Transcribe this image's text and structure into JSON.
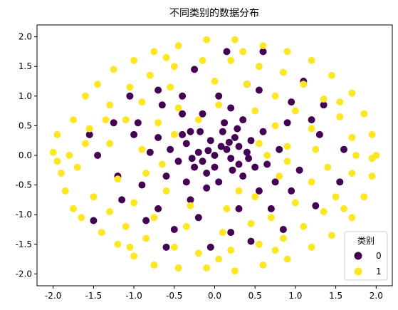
{
  "chart_data": {
    "type": "scatter",
    "title": "不同类别的数据分布",
    "xlabel": "",
    "ylabel": "",
    "xlim": [
      -2.2,
      2.2
    ],
    "ylim": [
      -2.2,
      2.2
    ],
    "x_ticks": [
      "-2.0",
      "-1.5",
      "-1.0",
      "-0.5",
      "0.0",
      "0.5",
      "1.0",
      "1.5",
      "2.0"
    ],
    "y_ticks": [
      "2.0",
      "1.5",
      "1.0",
      "0.5",
      "0.0",
      "-0.5",
      "-1.0",
      "-1.5",
      "-2.0"
    ],
    "grid": false,
    "legend": {
      "title": "类别",
      "placement": "lower right",
      "entries": [
        {
          "label": "0",
          "color": "#440154"
        },
        {
          "label": "1",
          "color": "#fde725"
        }
      ]
    },
    "series": [
      {
        "name": "0",
        "color": "#440154",
        "points": [
          [
            0.0,
            0.0
          ],
          [
            0.15,
            0.1
          ],
          [
            -0.2,
            0.05
          ],
          [
            0.3,
            -0.15
          ],
          [
            -0.1,
            -0.3
          ],
          [
            0.25,
            0.3
          ],
          [
            -0.35,
            0.2
          ],
          [
            0.05,
            -0.45
          ],
          [
            0.4,
            0.05
          ],
          [
            -0.25,
            -0.2
          ],
          [
            0.1,
            0.4
          ],
          [
            -0.45,
            -0.1
          ],
          [
            0.35,
            -0.35
          ],
          [
            0.2,
            -0.05
          ],
          [
            -0.05,
            0.25
          ],
          [
            0.45,
            0.25
          ],
          [
            -0.3,
            0.4
          ],
          [
            0.0,
            -0.2
          ],
          [
            0.3,
            0.15
          ],
          [
            -0.15,
            -0.1
          ],
          [
            0.5,
            -0.2
          ],
          [
            -0.55,
            0.1
          ],
          [
            0.12,
            0.55
          ],
          [
            -0.1,
            -0.55
          ],
          [
            0.6,
            0.4
          ],
          [
            -0.6,
            -0.35
          ],
          [
            0.2,
            0.8
          ],
          [
            -0.4,
            0.7
          ],
          [
            0.55,
            -0.6
          ],
          [
            -0.3,
            -0.75
          ],
          [
            0.8,
            0.1
          ],
          [
            -0.8,
            0.05
          ],
          [
            0.9,
            0.55
          ],
          [
            -0.9,
            -0.5
          ],
          [
            0.3,
            -0.9
          ],
          [
            -0.65,
            0.85
          ],
          [
            0.7,
            -0.9
          ],
          [
            -1.0,
            0.35
          ],
          [
            1.05,
            -0.25
          ],
          [
            0.05,
            1.0
          ],
          [
            -0.2,
            -1.05
          ],
          [
            0.95,
            0.9
          ],
          [
            -1.15,
            -0.75
          ],
          [
            0.4,
            1.2
          ],
          [
            -0.5,
            -1.25
          ],
          [
            1.3,
            0.35
          ],
          [
            -1.25,
            0.55
          ],
          [
            -0.7,
            1.1
          ],
          [
            0.85,
            -1.25
          ],
          [
            0.15,
            1.75
          ],
          [
            0.6,
            1.75
          ],
          [
            -0.05,
            -1.55
          ],
          [
            -0.6,
            -1.55
          ],
          [
            1.25,
            -0.85
          ],
          [
            -1.45,
            0.0
          ],
          [
            1.35,
            0.85
          ],
          [
            -1.05,
            1.0
          ],
          [
            0.45,
            -1.45
          ],
          [
            -0.25,
            1.45
          ],
          [
            0.35,
            0.6
          ],
          [
            -0.7,
            0.3
          ],
          [
            0.65,
            -0.15
          ],
          [
            -0.15,
            0.7
          ],
          [
            0.75,
            -0.45
          ],
          [
            -0.35,
            -0.45
          ],
          [
            0.08,
            0.15
          ],
          [
            -0.08,
            0.08
          ],
          [
            0.22,
            -0.25
          ],
          [
            -0.28,
            -0.05
          ],
          [
            0.18,
            0.22
          ],
          [
            -0.4,
            0.35
          ],
          [
            0.28,
            0.45
          ],
          [
            0.42,
            -0.05
          ],
          [
            -0.18,
            0.4
          ],
          [
            1.55,
            -0.45
          ],
          [
            -1.5,
            -1.1
          ],
          [
            1.1,
            1.25
          ],
          [
            -0.85,
            -1.1
          ],
          [
            0.55,
            1.1
          ],
          [
            -0.95,
            0.55
          ],
          [
            1.6,
            0.1
          ],
          [
            -1.55,
            0.35
          ],
          [
            0.2,
            -1.3
          ],
          [
            -0.4,
            1.0
          ],
          [
            0.95,
            -0.6
          ],
          [
            -0.7,
            -0.9
          ],
          [
            1.2,
            0.6
          ],
          [
            -1.2,
            -0.35
          ]
        ]
      },
      {
        "name": "1",
        "color": "#fde725",
        "points": [
          [
            -2.0,
            0.05
          ],
          [
            -1.95,
            0.35
          ],
          [
            -1.85,
            -0.6
          ],
          [
            -1.75,
            0.6
          ],
          [
            -1.9,
            -0.3
          ],
          [
            -1.6,
            1.0
          ],
          [
            -1.65,
            -1.05
          ],
          [
            -1.45,
            1.2
          ],
          [
            -1.4,
            -1.3
          ],
          [
            -1.25,
            1.45
          ],
          [
            -1.2,
            -1.5
          ],
          [
            -1.0,
            1.6
          ],
          [
            -1.0,
            -1.7
          ],
          [
            -0.75,
            1.75
          ],
          [
            -0.75,
            -1.85
          ],
          [
            -0.45,
            1.85
          ],
          [
            -0.45,
            -1.9
          ],
          [
            -0.1,
            1.95
          ],
          [
            -0.1,
            -1.9
          ],
          [
            0.25,
            1.95
          ],
          [
            0.25,
            -1.95
          ],
          [
            0.6,
            1.85
          ],
          [
            0.6,
            -1.85
          ],
          [
            0.9,
            1.75
          ],
          [
            0.9,
            -1.75
          ],
          [
            1.2,
            1.6
          ],
          [
            1.2,
            -1.55
          ],
          [
            1.45,
            1.35
          ],
          [
            1.45,
            -1.35
          ],
          [
            1.7,
            1.05
          ],
          [
            1.7,
            -1.05
          ],
          [
            1.85,
            0.7
          ],
          [
            1.85,
            -0.7
          ],
          [
            1.95,
            0.35
          ],
          [
            2.0,
            0.0
          ],
          [
            1.95,
            -0.35
          ],
          [
            -1.8,
            0.0
          ],
          [
            -1.7,
            -0.2
          ],
          [
            -1.55,
            0.45
          ],
          [
            -1.5,
            -0.7
          ],
          [
            -1.3,
            0.85
          ],
          [
            -1.3,
            -0.95
          ],
          [
            -1.05,
            1.15
          ],
          [
            -1.1,
            -1.2
          ],
          [
            -0.8,
            1.35
          ],
          [
            -0.85,
            -1.4
          ],
          [
            -0.5,
            1.5
          ],
          [
            -0.5,
            -1.55
          ],
          [
            -0.15,
            1.6
          ],
          [
            -0.2,
            -1.65
          ],
          [
            0.2,
            1.6
          ],
          [
            0.2,
            -1.6
          ],
          [
            0.55,
            1.5
          ],
          [
            0.55,
            -1.5
          ],
          [
            0.85,
            1.4
          ],
          [
            0.85,
            -1.4
          ],
          [
            1.1,
            1.2
          ],
          [
            1.1,
            -1.2
          ],
          [
            1.35,
            0.95
          ],
          [
            1.35,
            -0.95
          ],
          [
            1.55,
            0.65
          ],
          [
            1.5,
            -0.7
          ],
          [
            1.7,
            0.3
          ],
          [
            1.7,
            -0.3
          ],
          [
            1.75,
            0.0
          ],
          [
            -1.3,
            0.2
          ],
          [
            -1.2,
            -0.4
          ],
          [
            -1.1,
            0.6
          ],
          [
            -1.0,
            -0.8
          ],
          [
            -0.9,
            0.9
          ],
          [
            -0.75,
            -1.05
          ],
          [
            -0.55,
            1.15
          ],
          [
            -0.35,
            -1.2
          ],
          [
            0.0,
            1.25
          ],
          [
            0.1,
            -1.3
          ],
          [
            0.4,
            1.2
          ],
          [
            0.45,
            -1.15
          ],
          [
            0.75,
            1.0
          ],
          [
            0.7,
            -1.05
          ],
          [
            1.0,
            0.75
          ],
          [
            1.0,
            -0.8
          ],
          [
            1.2,
            0.45
          ],
          [
            1.2,
            -0.45
          ],
          [
            1.25,
            0.1
          ],
          [
            -0.9,
            0.1
          ],
          [
            -0.85,
            -0.3
          ],
          [
            -0.7,
            0.55
          ],
          [
            -0.6,
            -0.6
          ],
          [
            -0.45,
            0.8
          ],
          [
            -0.3,
            -0.85
          ],
          [
            0.05,
            0.85
          ],
          [
            0.15,
            -0.9
          ],
          [
            0.5,
            0.75
          ],
          [
            0.5,
            -0.7
          ],
          [
            0.75,
            0.5
          ],
          [
            0.8,
            -0.35
          ],
          [
            0.9,
            0.15
          ],
          [
            0.9,
            -0.1
          ],
          [
            -0.5,
            0.35
          ],
          [
            0.55,
            0.2
          ],
          [
            -0.2,
            0.6
          ],
          [
            0.3,
            -0.6
          ],
          [
            -0.65,
            -0.15
          ],
          [
            0.65,
            0.0
          ],
          [
            -1.6,
            0.2
          ],
          [
            1.55,
            0.9
          ],
          [
            -1.05,
            -1.55
          ],
          [
            0.35,
            1.75
          ],
          [
            0.05,
            -1.75
          ],
          [
            -1.35,
            0.6
          ],
          [
            1.4,
            -0.2
          ],
          [
            1.6,
            -0.9
          ],
          [
            -1.75,
            -0.9
          ],
          [
            -0.6,
            1.65
          ],
          [
            0.75,
            -1.6
          ],
          [
            1.95,
            -0.05
          ],
          [
            -1.95,
            -0.1
          ]
        ]
      }
    ]
  }
}
